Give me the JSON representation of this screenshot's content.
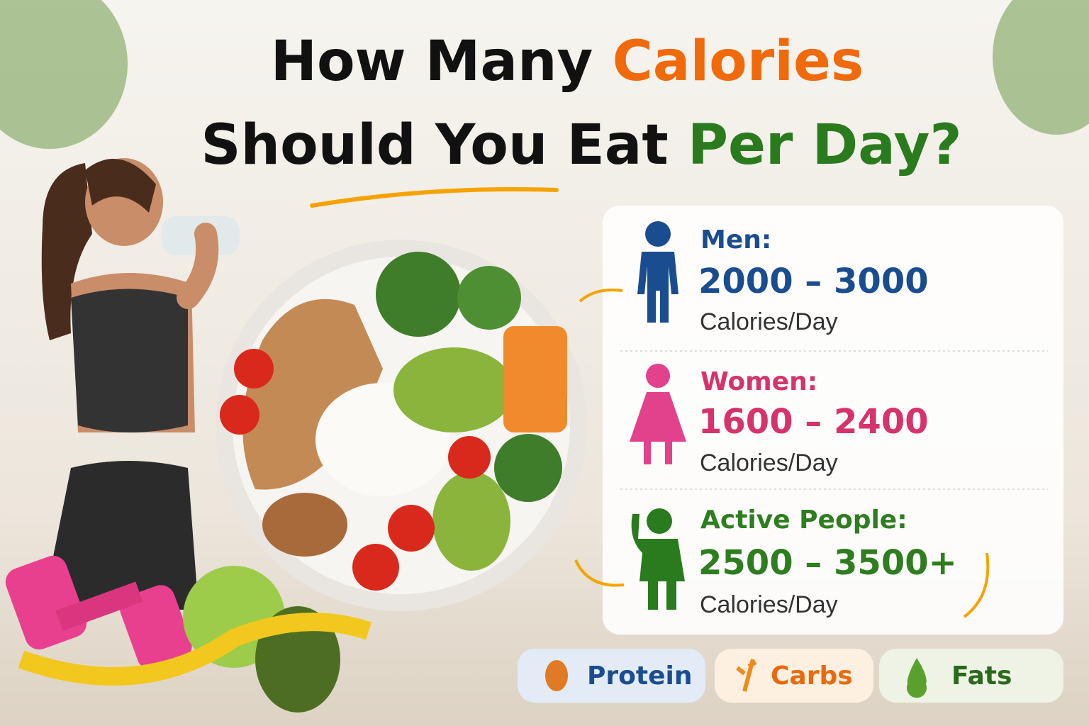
{
  "title": {
    "line1": [
      "How Many",
      "Calories"
    ],
    "line2": [
      "Should You Eat",
      "Per Day?"
    ]
  },
  "groups": [
    {
      "label": "Men:",
      "range": "2000 – 3000",
      "unit": "Calories/Day"
    },
    {
      "label": "Women:",
      "range": "1600 – 2400",
      "unit": "Calories/Day"
    },
    {
      "label": "Active People:",
      "range": "2500 – 3500+",
      "unit": "Calories/Day"
    }
  ],
  "tags": [
    "Protein",
    "Carbs",
    "Fats"
  ]
}
